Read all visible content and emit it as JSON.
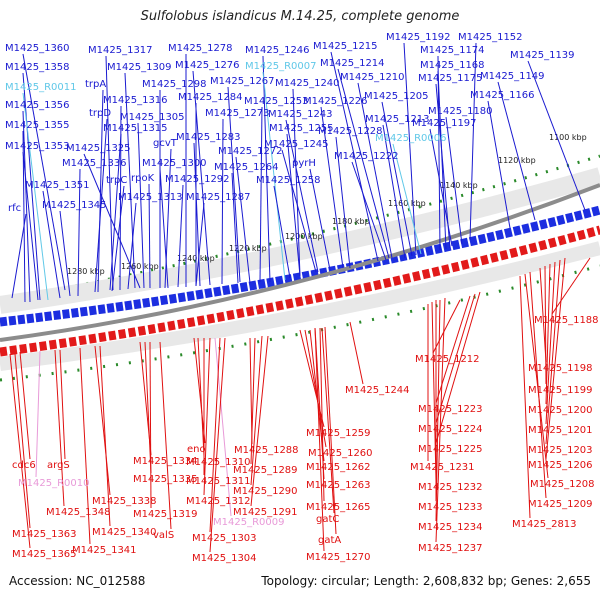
{
  "title": "Sulfolobus islandicus M.14.25, complete genome",
  "accession": "Accession: NC_012588",
  "topology": "Topology: circular; Length: 2,608,832 bp; Genes: 2,655",
  "colors": {
    "forward_label": "#1a1ad0",
    "reverse_label": "#e01010",
    "rna_label": "#60c8e8",
    "reverse_rna_label": "#e89ad8",
    "backbone": "#8c8c8c",
    "tick": "#2a8a2a"
  },
  "scale_ticks": [
    "1100 kbp",
    "1120 kbp",
    "1140 kbp",
    "1160 kbp",
    "1180 kbp",
    "1200 kbp",
    "1220 kbp",
    "1240 kbp",
    "1260 kbp",
    "1280 kbp"
  ],
  "forward_labels": [
    "M1425_1360",
    "M1425_1317",
    "M1425_1278",
    "M1425_1246",
    "M1425_1215",
    "M1425_1192",
    "M1425_1152",
    "M1425_1358",
    "M1425_1309",
    "M1425_1276",
    "M1425_R0007",
    "M1425_1214",
    "M1425_1174",
    "M1425_1139",
    "M1425_R0011",
    "trpA",
    "M1425_1298",
    "M1425_1267",
    "M1425_1240",
    "M1425_1210",
    "M1425_1168",
    "M1425_1149",
    "M1425_1356",
    "M1425_1316",
    "M1425_1284",
    "M1425_1253",
    "M1425_1226",
    "M1425_1175",
    "M1425_1166",
    "trpD",
    "M1425_1305",
    "M1425_1273",
    "M1425_1243",
    "M1425_1205",
    "M1425_1180",
    "M1425_1355",
    "M1425_1315",
    "M1425_1255",
    "M1425_1228",
    "M1425_1213",
    "M1425_1197",
    "M1425_1283",
    "M1425_R0006",
    "M1425_1353",
    "M1425_1325",
    "gcvT",
    "M1425_1245",
    "M1425_1272",
    "M1425_1336",
    "M1425_1300",
    "pyrH",
    "M1425_1222",
    "M1425_1264",
    "trpC",
    "rpoK",
    "M1425_1292",
    "M1425_1258",
    "M1425_1351",
    "M1425_1313",
    "M1425_1287",
    "M1425_1345",
    "rfc"
  ],
  "reverse_labels": [
    "M1425_1188",
    "M1425_1212",
    "M1425_1198",
    "M1425_1244",
    "M1425_1199",
    "M1425_1223",
    "M1425_1200",
    "M1425_1224",
    "M1425_1201",
    "M1425_1259",
    "M1425_1225",
    "M1425_1203",
    "M1425_1260",
    "M1425_1288",
    "M1425_1206",
    "M1425_1334",
    "M1425_1310",
    "cdc6",
    "argS",
    "M1425_1262",
    "M1425_1231",
    "eno",
    "M1425_1289",
    "M1425_1335",
    "M1425_1311",
    "M1425_R0010",
    "M1425_1263",
    "M1425_1232",
    "M1425_1208",
    "M1425_1290",
    "M1425_1338",
    "M1425_1312",
    "M1425_1348",
    "M1425_1265",
    "M1425_1233",
    "M1425_1209",
    "M1425_1319",
    "M1425_1291",
    "M1425_R0009",
    "gatC",
    "M1425_1234",
    "M1425_2813",
    "M1425_1340",
    "M1425_1363",
    "valS",
    "M1425_1303",
    "gatA",
    "M1425_1341",
    "M1425_1237",
    "M1425_1365",
    "M1425_1304",
    "M1425_1270"
  ]
}
